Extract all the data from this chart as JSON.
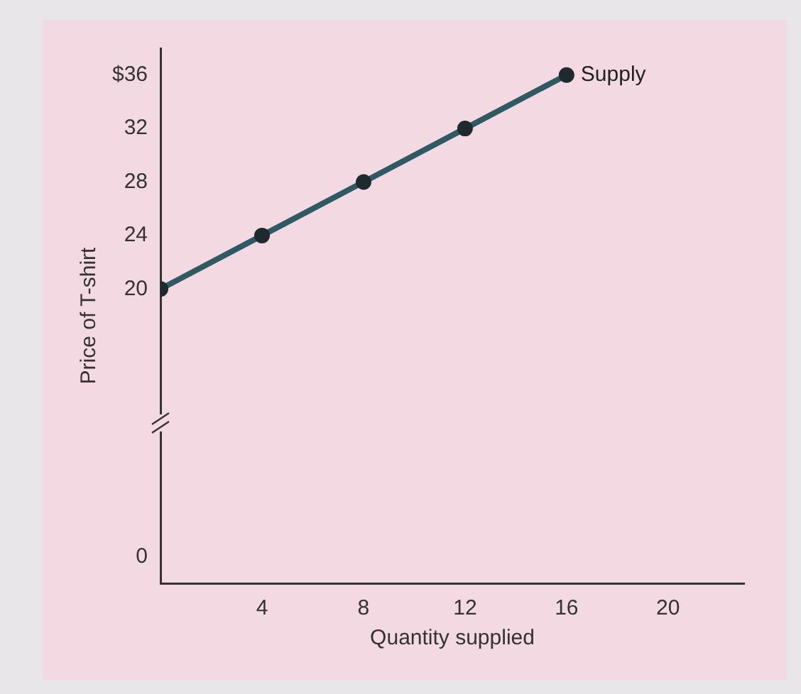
{
  "chart_data": {
    "type": "line",
    "xlabel": "Quantity supplied",
    "ylabel": "Price of T-shirt",
    "x": [
      0,
      4,
      8,
      12,
      16
    ],
    "series": [
      {
        "name": "Supply",
        "color": "#2f5a63",
        "values": [
          20,
          24,
          28,
          32,
          36
        ]
      }
    ],
    "xlim": [
      0,
      23
    ],
    "xticks": [
      4,
      8,
      12,
      16,
      20
    ],
    "ylim": [
      -2,
      38
    ],
    "yticks": [
      0,
      20,
      24,
      28,
      32,
      {
        "value": 36,
        "label": "$36"
      }
    ],
    "grid": false,
    "legend": false,
    "marker": "circle",
    "line_style": "solid"
  }
}
